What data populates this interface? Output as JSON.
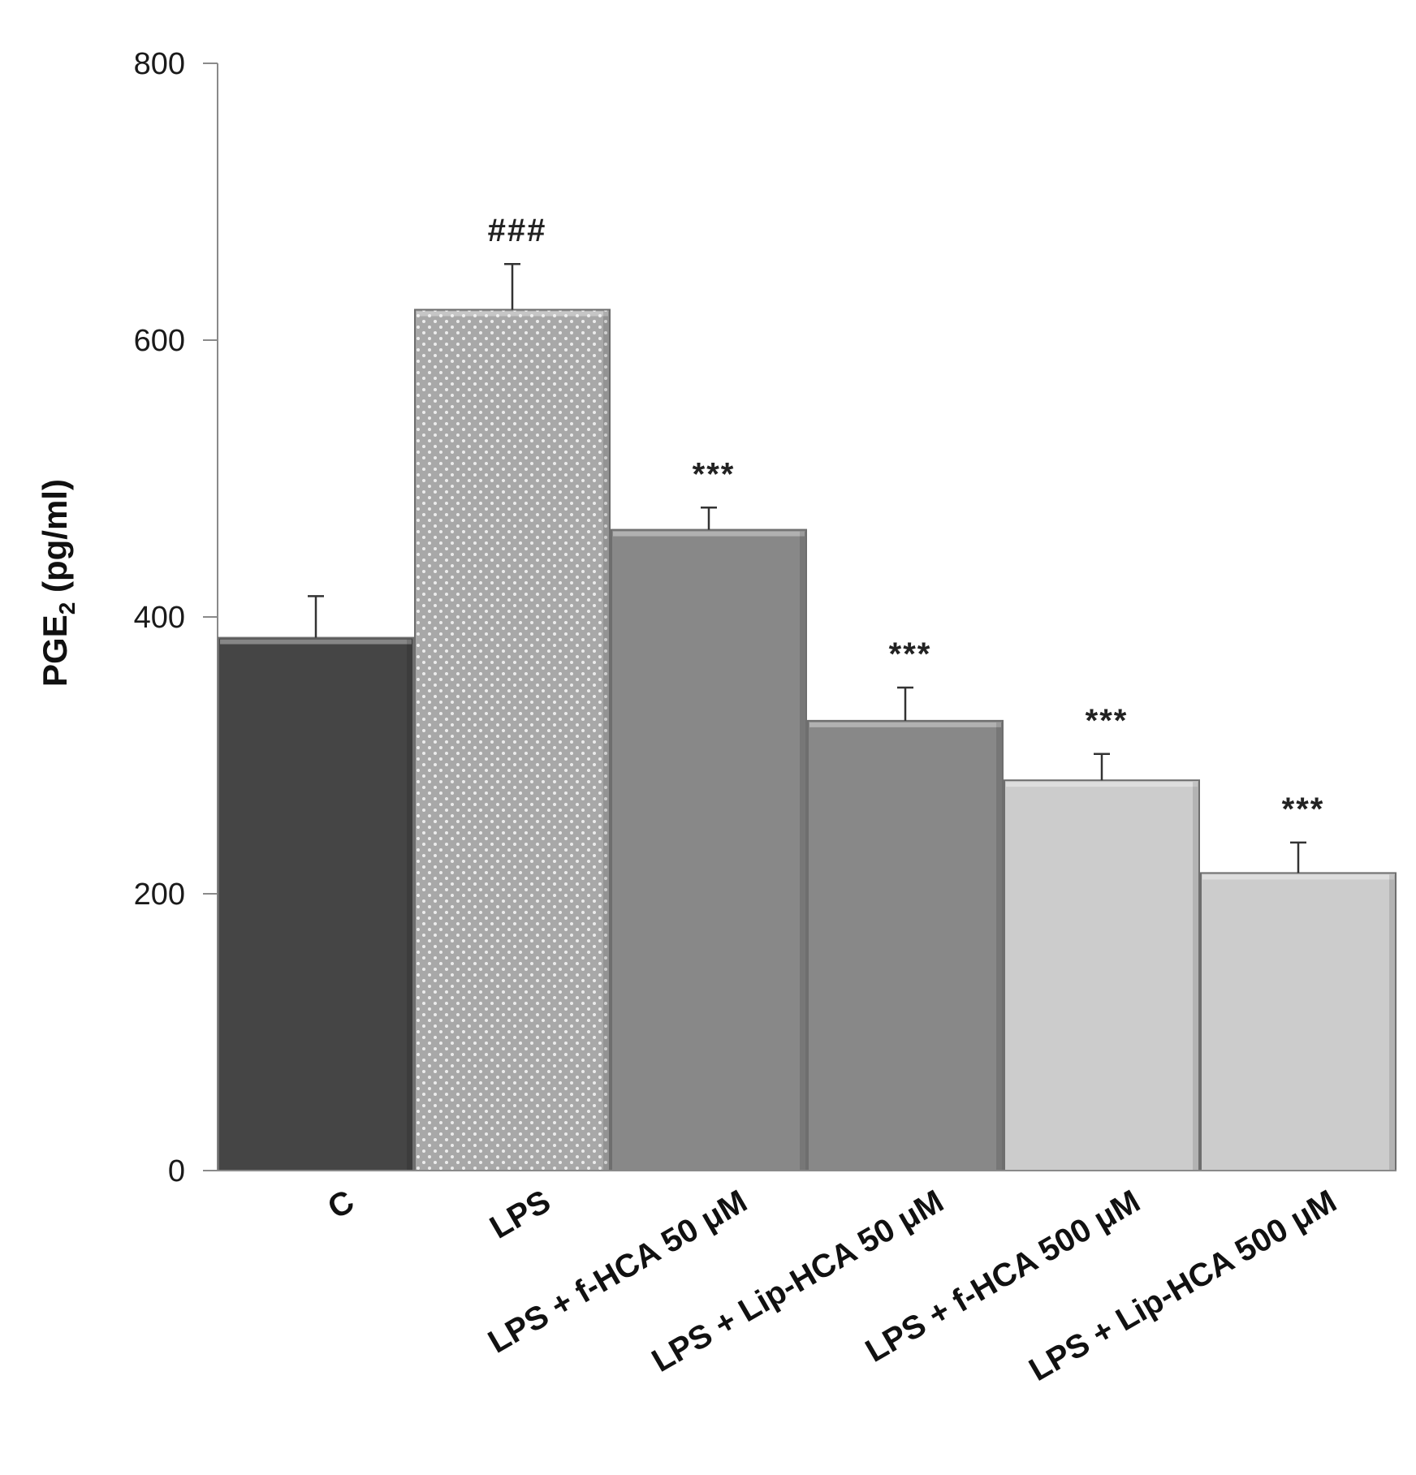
{
  "chart_data": {
    "type": "bar",
    "categories": [
      "C",
      "LPS",
      "LPS + f-HCA 50 μM",
      "LPS + Lip-HCA 50 μM",
      "LPS + f-HCA 500 μM",
      "LPS + Lip-HCA 500 μM"
    ],
    "values": [
      385,
      622,
      463,
      325,
      282,
      215
    ],
    "errors": [
      30,
      33,
      16,
      24,
      19,
      22
    ],
    "significance": [
      "",
      "###",
      "***",
      "***",
      "***",
      "***"
    ],
    "bar_colors": [
      "#454545",
      "#a8a8a8",
      "#888888",
      "#888888",
      "#cccccc",
      "#cccccc"
    ],
    "bar_patterns": [
      "solid",
      "dotted",
      "solid",
      "solid",
      "solid",
      "solid"
    ],
    "title": "",
    "xlabel": "",
    "ylabel_main": "PGE",
    "ylabel_sub": "2",
    "ylabel_unit": " (pg/ml)",
    "ylim": [
      0,
      800
    ],
    "yticks": [
      0,
      200,
      400,
      600,
      800
    ],
    "grid": false,
    "legend": "none"
  }
}
